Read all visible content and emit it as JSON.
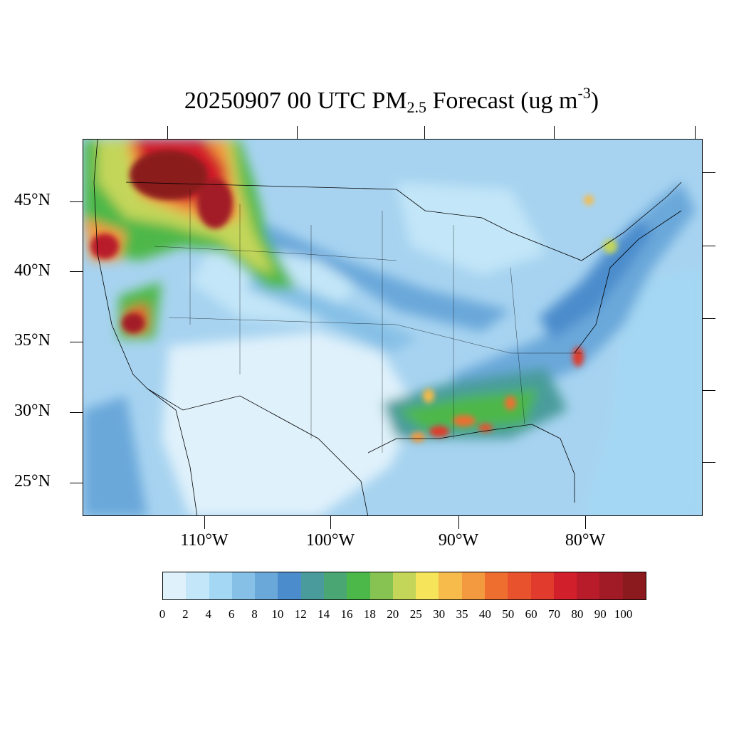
{
  "title": {
    "prefix": "20250907 00 UTC PM",
    "sub": "2.5",
    "suffix": " Forecast (ug m",
    "sup": "-3",
    "close": ")"
  },
  "axes": {
    "lat_labels": [
      "45°N",
      "40°N",
      "35°N",
      "30°N",
      "25°N"
    ],
    "lon_labels": [
      "110°W",
      "100°W",
      "90°W",
      "80°W"
    ]
  },
  "colorbar": {
    "tick_labels": [
      "0",
      "2",
      "4",
      "6",
      "8",
      "10",
      "12",
      "14",
      "16",
      "18",
      "20",
      "25",
      "30",
      "35",
      "40",
      "50",
      "60",
      "70",
      "80",
      "90",
      "100"
    ],
    "colors": [
      "#dff1fb",
      "#c3e6f8",
      "#a4d7f3",
      "#86c0e6",
      "#6aa8da",
      "#4b8ccc",
      "#4a9c9c",
      "#4aa673",
      "#4db84a",
      "#86c353",
      "#c3d65a",
      "#f6e45a",
      "#f6bb4a",
      "#f3993f",
      "#ee6e30",
      "#e8522c",
      "#e03b2c",
      "#d11f2c",
      "#b81c2a",
      "#a11b27",
      "#8b1a1f"
    ]
  }
}
